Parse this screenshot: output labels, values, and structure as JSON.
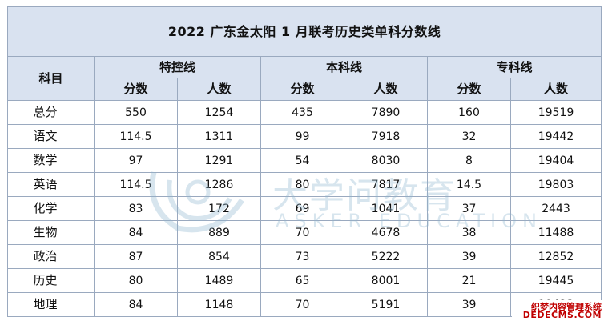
{
  "title": "2022 广东金太阳 1 月联考历史类单科分数线",
  "header": {
    "subject": "科目",
    "groups": [
      "特控线",
      "本科线",
      "专科线"
    ],
    "score": "分数",
    "count": "人数"
  },
  "rows": [
    {
      "subject": "总分",
      "v": [
        "550",
        "1254",
        "435",
        "7890",
        "160",
        "19519"
      ]
    },
    {
      "subject": "语文",
      "v": [
        "114.5",
        "1311",
        "99",
        "7918",
        "32",
        "19442"
      ]
    },
    {
      "subject": "数学",
      "v": [
        "97",
        "1291",
        "54",
        "8030",
        "8",
        "19404"
      ]
    },
    {
      "subject": "英语",
      "v": [
        "114.5",
        "1286",
        "80",
        "7817",
        "14.5",
        "19803"
      ]
    },
    {
      "subject": "化学",
      "v": [
        "83",
        "172",
        "69",
        "1041",
        "37",
        "2443"
      ]
    },
    {
      "subject": "生物",
      "v": [
        "84",
        "889",
        "70",
        "4678",
        "38",
        "11488"
      ]
    },
    {
      "subject": "政治",
      "v": [
        "87",
        "854",
        "73",
        "5222",
        "39",
        "12852"
      ]
    },
    {
      "subject": "历史",
      "v": [
        "80",
        "1489",
        "65",
        "8001",
        "21",
        "19445"
      ]
    },
    {
      "subject": "地理",
      "v": [
        "84",
        "1148",
        "70",
        "5191",
        "39",
        "19423"
      ]
    }
  ],
  "watermark": {
    "text": "大学问教育",
    "sub": "ASKER EDUCATION"
  },
  "stamp": {
    "line1": "织梦内容管理系统",
    "line2": "DEDECMS.COM"
  }
}
